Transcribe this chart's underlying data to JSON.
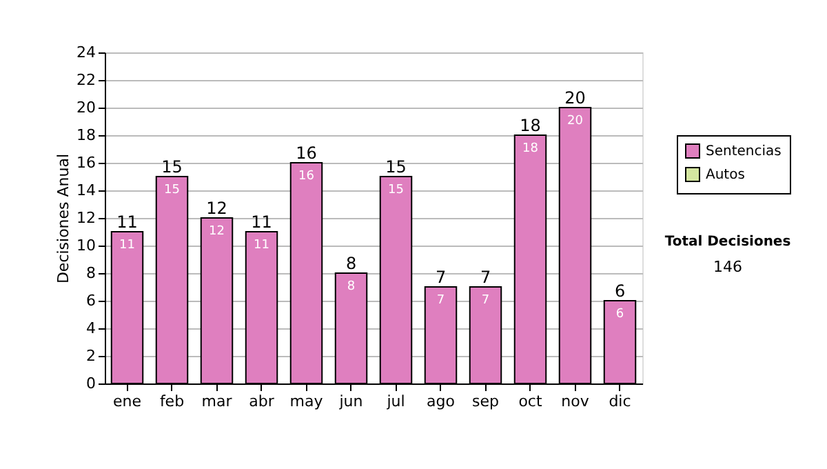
{
  "chart_data": {
    "type": "bar",
    "stacked": true,
    "ylabel": "Decisiones Anual",
    "categories": [
      "ene",
      "feb",
      "mar",
      "abr",
      "may",
      "jun",
      "jul",
      "ago",
      "sep",
      "oct",
      "nov",
      "dic"
    ],
    "series": [
      {
        "name": "Sentencias",
        "color": "#df7fbf",
        "values": [
          11,
          15,
          12,
          11,
          16,
          8,
          15,
          7,
          7,
          18,
          20,
          6
        ]
      },
      {
        "name": "Autos",
        "color": "#d4e6a0",
        "values": [
          null,
          null,
          null,
          null,
          null,
          null,
          null,
          null,
          null,
          null,
          null,
          null
        ]
      }
    ],
    "data_labels": true,
    "totals": [
      "11",
      "15",
      "12",
      "11",
      "16",
      "8",
      "15",
      "7",
      "7",
      "18",
      "20",
      "6"
    ],
    "ylim": [
      0,
      24
    ],
    "yticks": [
      0,
      2,
      4,
      6,
      8,
      10,
      12,
      14,
      16,
      18,
      20,
      22,
      24
    ],
    "grid": "y",
    "legend": "right",
    "annotations": [
      "Total Decisiones",
      "146"
    ]
  }
}
